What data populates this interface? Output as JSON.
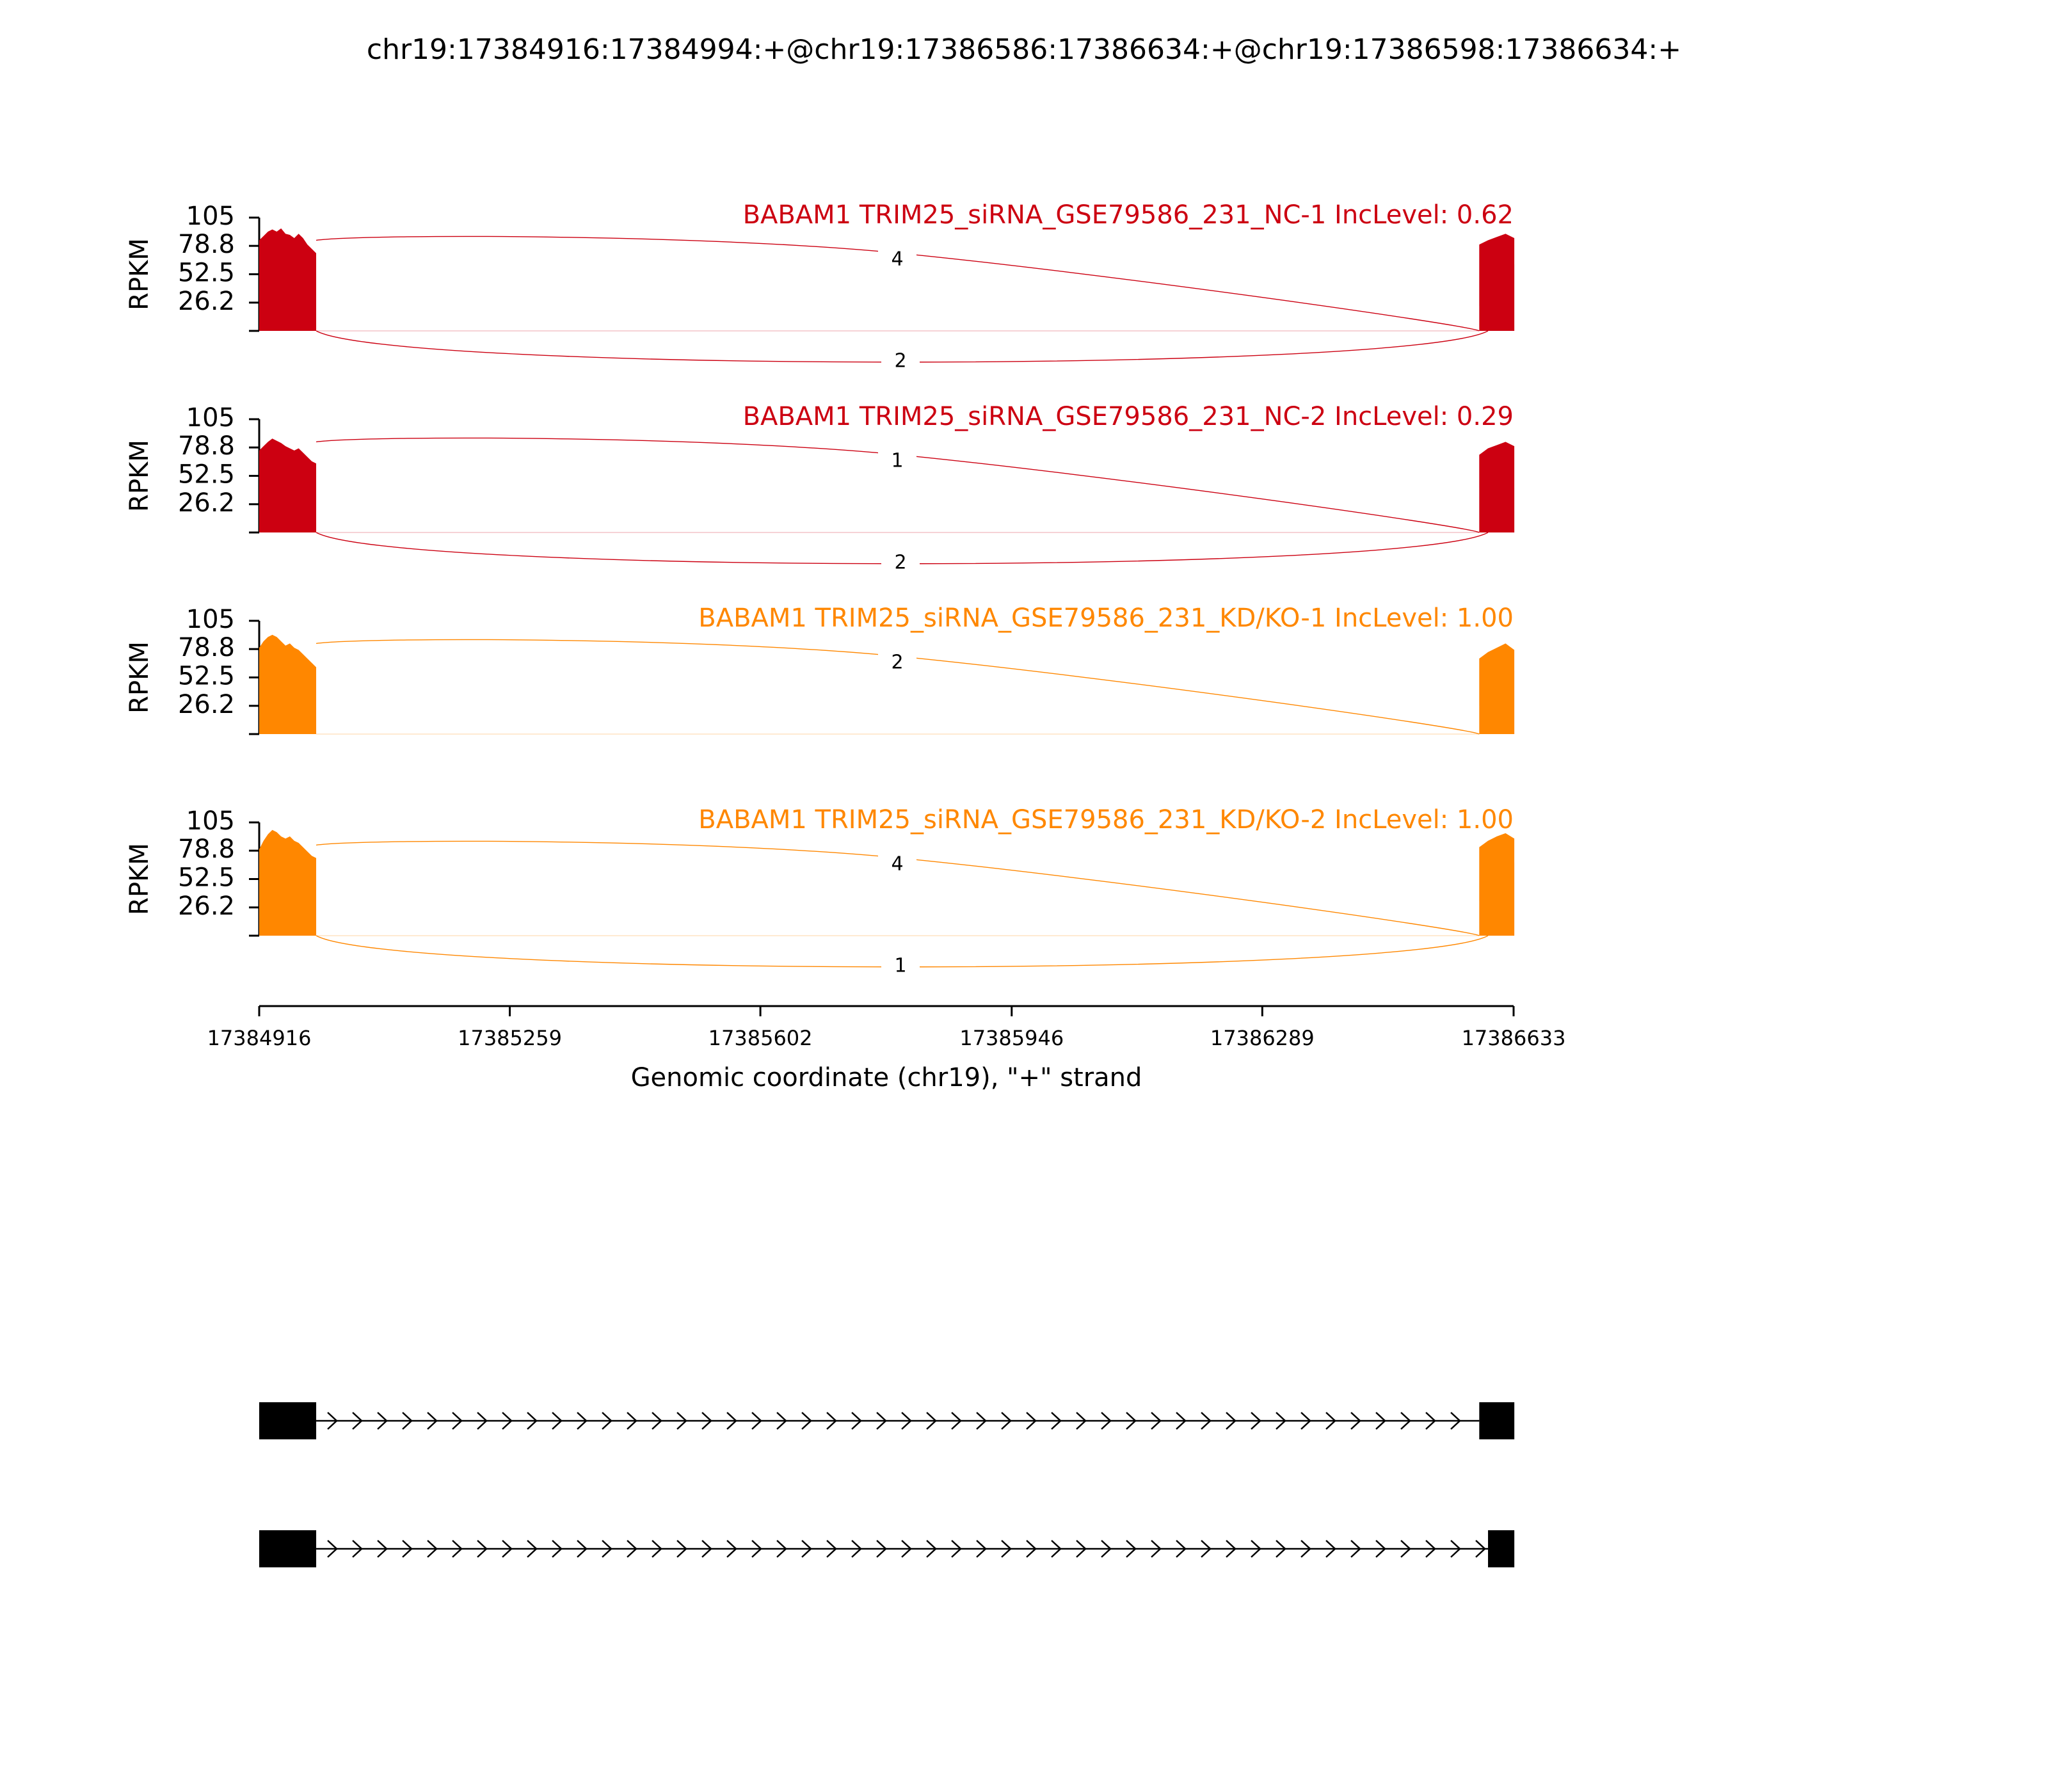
{
  "title": "chr19:17384916:17384994:+@chr19:17386586:17386634:+@chr19:17386598:17386634:+",
  "xlabel": "Genomic coordinate (chr19), \"+\" strand",
  "chart_data": {
    "type": "area",
    "title": "chr19:17384916:17384994:+@chr19:17386586:17386634:+@chr19:17386598:17386634:+",
    "xlabel": "Genomic coordinate (chr19), \"+\" strand",
    "xlim": [
      17384916,
      17386633
    ],
    "xticks": [
      "17384916",
      "17385259",
      "17385602",
      "17385946",
      "17386289",
      "17386633"
    ],
    "ylabel": "RPKM",
    "ylim": [
      0,
      105
    ],
    "yticks": [
      "105",
      "78.8",
      "52.5",
      "26.2"
    ],
    "exons": [
      {
        "start": 17384916,
        "end": 17384994
      },
      {
        "start": 17386586,
        "end": 17386634
      }
    ],
    "series": [
      {
        "name": "BABAM1 TRIM25_siRNA_GSE79586_231_NC-1 IncLevel: 0.62",
        "color": "#cc0011",
        "coverage_left": [
          84,
          88,
          92,
          94,
          92,
          95,
          90,
          89,
          86,
          90,
          86,
          80,
          76,
          72
        ],
        "coverage_right": [
          80,
          84,
          87,
          90,
          86
        ],
        "junctions": [
          {
            "from": 17384994,
            "to": 17386586,
            "reads": "4",
            "side": "above"
          },
          {
            "from": 17384994,
            "to": 17386598,
            "reads": "2",
            "side": "below"
          }
        ]
      },
      {
        "name": "BABAM1 TRIM25_siRNA_GSE79586_231_NC-2 IncLevel: 0.29",
        "color": "#cc0011",
        "coverage_left": [
          76,
          80,
          84,
          87,
          85,
          83,
          80,
          78,
          76,
          78,
          74,
          70,
          66,
          64
        ],
        "coverage_right": [
          72,
          78,
          81,
          84,
          80
        ],
        "junctions": [
          {
            "from": 17384994,
            "to": 17386586,
            "reads": "1",
            "side": "above"
          },
          {
            "from": 17384994,
            "to": 17386598,
            "reads": "2",
            "side": "below"
          }
        ]
      },
      {
        "name": "BABAM1 TRIM25_siRNA_GSE79586_231_KD/KO-1 IncLevel: 1.00",
        "color": "#ff8700",
        "coverage_left": [
          80,
          86,
          90,
          92,
          90,
          86,
          82,
          84,
          80,
          78,
          74,
          70,
          66,
          62
        ],
        "coverage_right": [
          70,
          76,
          80,
          84,
          78
        ],
        "junctions": [
          {
            "from": 17384994,
            "to": 17386586,
            "reads": "2",
            "side": "above"
          }
        ]
      },
      {
        "name": "BABAM1 TRIM25_siRNA_GSE79586_231_KD/KO-2 IncLevel: 1.00",
        "color": "#ff8700",
        "coverage_left": [
          80,
          88,
          94,
          98,
          96,
          92,
          90,
          92,
          88,
          86,
          82,
          78,
          74,
          72
        ],
        "coverage_right": [
          82,
          88,
          92,
          95,
          90
        ],
        "junctions": [
          {
            "from": 17384994,
            "to": 17386586,
            "reads": "4",
            "side": "above"
          },
          {
            "from": 17384994,
            "to": 17386598,
            "reads": "1",
            "side": "below"
          }
        ]
      }
    ],
    "transcripts": [
      {
        "exons": [
          {
            "start": 17384916,
            "end": 17384994
          },
          {
            "start": 17386586,
            "end": 17386634
          }
        ],
        "strand": "+"
      },
      {
        "exons": [
          {
            "start": 17384916,
            "end": 17384994
          },
          {
            "start": 17386598,
            "end": 17386634
          }
        ],
        "strand": "+"
      }
    ]
  }
}
